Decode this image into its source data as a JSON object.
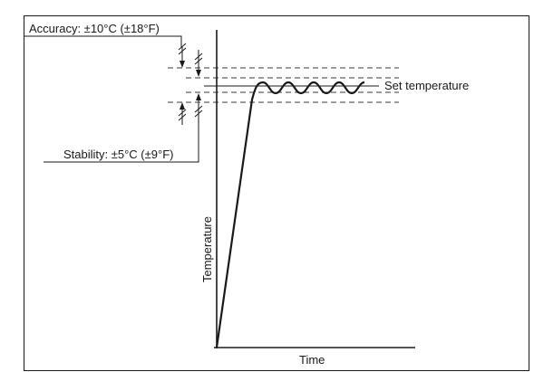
{
  "diagram": {
    "accuracy_label": "Accuracy: ±10°C (±18°F)",
    "stability_label": "Stability: ±5°C (±9°F)",
    "set_temperature_label": "Set temperature",
    "y_axis_label": "Temperature",
    "x_axis_label": "Time"
  },
  "colors": {
    "line": "#1a1a1a",
    "dashed": "#3a3a3a",
    "frame": "#1a1a1a",
    "background": "#ffffff"
  }
}
